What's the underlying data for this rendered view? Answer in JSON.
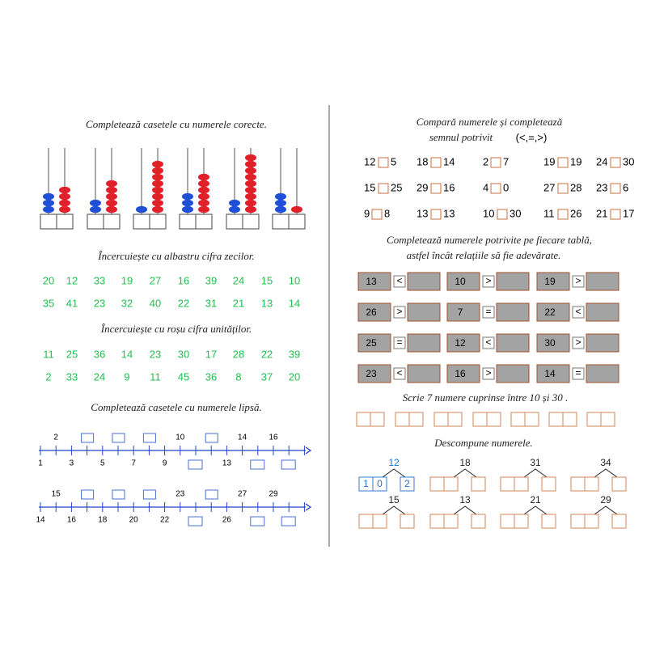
{
  "left": {
    "abacus": {
      "title": "Completează casetele cu numerele corecte.",
      "columns": [
        {
          "tens": 3,
          "units": 4
        },
        {
          "tens": 2,
          "units": 5
        },
        {
          "tens": 1,
          "units": 8
        },
        {
          "tens": 3,
          "units": 6
        },
        {
          "tens": 2,
          "units": 9
        },
        {
          "tens": 3,
          "units": 1
        }
      ]
    },
    "tens_circle": {
      "title": "Încercuiește cu albastru cifra zecilor.",
      "rows": [
        [
          20,
          12,
          33,
          19,
          27,
          16,
          39,
          24,
          15,
          10
        ],
        [
          35,
          41,
          23,
          32,
          40,
          22,
          31,
          21,
          13,
          14
        ]
      ]
    },
    "units_circle": {
      "title": "Încercuiește cu roșu cifra unităților.",
      "rows": [
        [
          11,
          25,
          36,
          14,
          23,
          30,
          17,
          28,
          22,
          39
        ],
        [
          2,
          33,
          24,
          9,
          11,
          45,
          36,
          8,
          37,
          20
        ]
      ]
    },
    "number_lines": {
      "title": "Completează casetele cu numerele lipsă.",
      "lines": [
        {
          "above": [
            2,
            10,
            14,
            16
          ],
          "below": [
            1,
            3,
            5,
            7,
            9,
            13
          ]
        },
        {
          "above": [
            15,
            23,
            27,
            29
          ],
          "below": [
            14,
            16,
            18,
            20,
            22,
            26
          ]
        }
      ]
    }
  },
  "right": {
    "compare": {
      "title": [
        "Compară numerele și completează",
        "semnul potrivit"
      ],
      "signs": "(<,=,>)",
      "rows": [
        [
          [
            12,
            5
          ],
          [
            18,
            14
          ],
          [
            2,
            7
          ],
          [
            19,
            19
          ],
          [
            24,
            30
          ]
        ],
        [
          [
            15,
            25
          ],
          [
            29,
            16
          ],
          [
            4,
            0
          ],
          [
            27,
            28
          ],
          [
            23,
            6
          ]
        ],
        [
          [
            9,
            8
          ],
          [
            13,
            13
          ],
          [
            10,
            30
          ],
          [
            11,
            26
          ],
          [
            21,
            17
          ]
        ]
      ]
    },
    "boards": {
      "title": [
        "Completează numerele  potrivite pe fiecare tablă,",
        "astfel încât relațiile să fie adevărate."
      ],
      "rows": [
        [
          {
            "number": 13,
            "sign": "<"
          },
          {
            "number": 10,
            "sign": ">"
          },
          {
            "number": 19,
            "sign": ">"
          }
        ],
        [
          {
            "number": 26,
            "sign": ">"
          },
          {
            "number": 7,
            "sign": "="
          },
          {
            "number": 22,
            "sign": "<"
          }
        ],
        [
          {
            "number": 25,
            "sign": "="
          },
          {
            "number": 12,
            "sign": "<"
          },
          {
            "number": 30,
            "sign": ">"
          }
        ],
        [
          {
            "number": 23,
            "sign": "<"
          },
          {
            "number": 16,
            "sign": ">"
          },
          {
            "number": 14,
            "sign": "="
          }
        ]
      ]
    },
    "write": {
      "title": "Scrie 7 numere cuprinse între 10 și 30 ."
    },
    "decompose": {
      "title": "Descompune numerele.",
      "rows": [
        [
          {
            "number": 12,
            "example": [
              1,
              0,
              2
            ]
          },
          {
            "number": 18
          },
          {
            "number": 31
          },
          {
            "number": 34
          }
        ],
        [
          {
            "number": 15
          },
          {
            "number": 13
          },
          {
            "number": 21
          },
          {
            "number": 29
          }
        ]
      ]
    }
  }
}
